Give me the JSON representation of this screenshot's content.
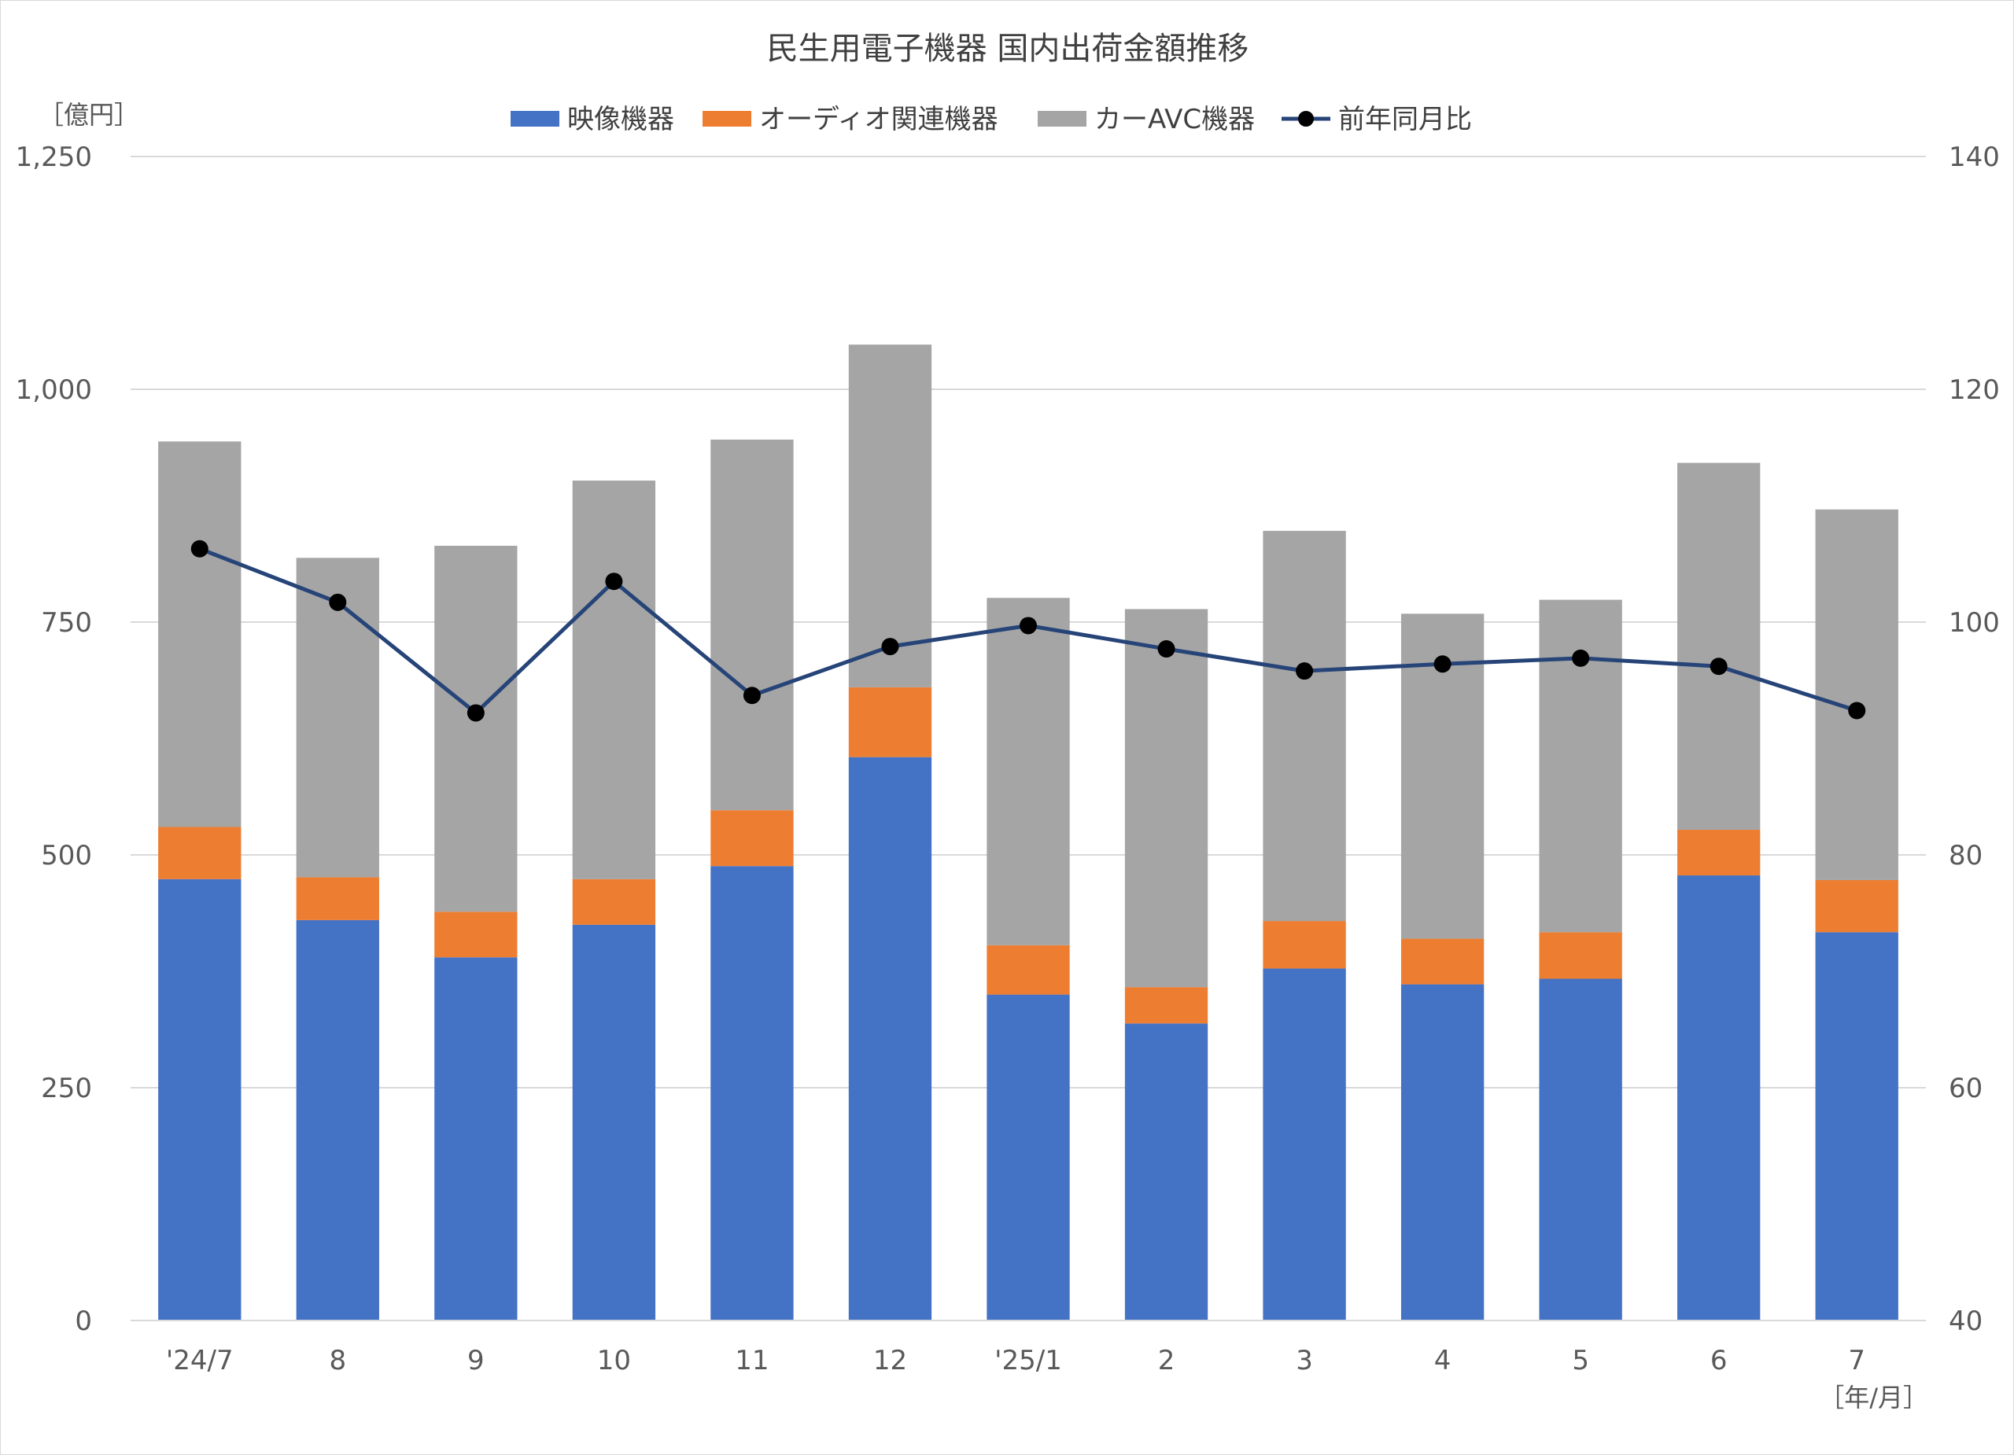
{
  "chart_data": {
    "type": "bar",
    "stacked": true,
    "title": "民生用電子機器 国内出荷金額推移",
    "left_unit": "［億円］",
    "x_unit": "［年/月］",
    "categories": [
      "'24/7",
      "8",
      "9",
      "10",
      "11",
      "12",
      "'25/1",
      "2",
      "3",
      "4",
      "5",
      "6",
      "7"
    ],
    "series": [
      {
        "name": "映像機器",
        "type": "bar",
        "axis": "left",
        "color": "#4472c4",
        "values": [
          474,
          430,
          390,
          425,
          488,
          605,
          350,
          319,
          378,
          361,
          367,
          478,
          417
        ]
      },
      {
        "name": "オーディオ関連機器",
        "type": "bar",
        "axis": "left",
        "color": "#ed7d31",
        "values": [
          56,
          46,
          49,
          49,
          60,
          75,
          53,
          39,
          51,
          49,
          50,
          49,
          56
        ]
      },
      {
        "name": "カーAVC機器",
        "type": "bar",
        "axis": "left",
        "color": "#a5a5a5",
        "values": [
          414,
          343,
          393,
          428,
          398,
          368,
          373,
          406,
          419,
          349,
          357,
          394,
          398
        ]
      },
      {
        "name": "前年同月比",
        "type": "line",
        "axis": "right",
        "color": "#264478",
        "marker_color": "#000000",
        "values": [
          106.3,
          101.7,
          92.2,
          103.5,
          93.7,
          97.9,
          99.7,
          97.7,
          95.8,
          96.4,
          96.9,
          96.2,
          92.4
        ]
      }
    ],
    "y_left": {
      "min": 0,
      "max": 1250,
      "ticks": [
        0,
        250,
        500,
        750,
        1000,
        1250
      ],
      "tick_labels": [
        "0",
        "250",
        "500",
        "750",
        "1,000",
        "1,250"
      ]
    },
    "y_right": {
      "min": 40,
      "max": 140,
      "ticks": [
        40,
        60,
        80,
        100,
        120,
        140
      ],
      "tick_labels": [
        "40",
        "60",
        "80",
        "100",
        "120",
        "140"
      ]
    },
    "grid": true,
    "legend_position": "top"
  }
}
